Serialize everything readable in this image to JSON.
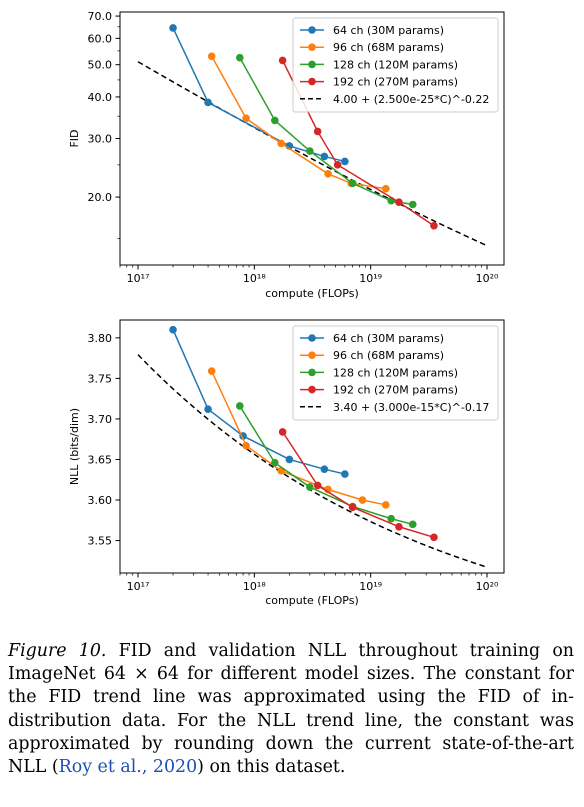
{
  "colors": {
    "s64": "#1f77b4",
    "s96": "#ff7f0e",
    "s128": "#2ca02c",
    "s192": "#d62728",
    "trend": "#000000"
  },
  "chart_data": [
    {
      "type": "line",
      "xlabel": "compute (FLOPs)",
      "ylabel": "FID",
      "xscale": "log",
      "yscale": "log",
      "xlim": [
        7e+16,
        1.4e+20
      ],
      "ylim": [
        12.5,
        72
      ],
      "xticks": [
        {
          "v": 1e+17,
          "label": "10¹⁷"
        },
        {
          "v": 1e+18,
          "label": "10¹⁸"
        },
        {
          "v": 1e+19,
          "label": "10¹⁹"
        },
        {
          "v": 1e+20,
          "label": "10²⁰"
        }
      ],
      "yticks": [
        {
          "v": 20,
          "label": "20.0"
        },
        {
          "v": 30,
          "label": "30.0"
        },
        {
          "v": 40,
          "label": "40.0"
        },
        {
          "v": 50,
          "label": "50.0"
        },
        {
          "v": 60,
          "label": "60.0"
        },
        {
          "v": 70,
          "label": "70.0"
        }
      ],
      "legend_position": "top-right",
      "series": [
        {
          "name": "64 ch (30M params)",
          "color": "#1f77b4",
          "points": [
            [
              2e+17,
              64.5
            ],
            [
              4e+17,
              38.5
            ],
            [
              2e+18,
              28.5
            ],
            [
              4e+18,
              26.5
            ],
            [
              6e+18,
              25.6
            ]
          ]
        },
        {
          "name": "96 ch (68M params)",
          "color": "#ff7f0e",
          "points": [
            [
              4.3e+17,
              53.0
            ],
            [
              8.5e+17,
              34.5
            ],
            [
              1.7e+18,
              29.0
            ],
            [
              4.3e+18,
              23.5
            ],
            [
              6.8e+18,
              22.0
            ],
            [
              1.35e+19,
              21.2
            ]
          ]
        },
        {
          "name": "128 ch (120M params)",
          "color": "#2ca02c",
          "points": [
            [
              7.5e+17,
              52.5
            ],
            [
              1.5e+18,
              34.0
            ],
            [
              3e+18,
              27.5
            ],
            [
              7e+18,
              22.0
            ],
            [
              1.5e+19,
              19.5
            ],
            [
              2.3e+19,
              19.0
            ]
          ]
        },
        {
          "name": "192 ch (270M params)",
          "color": "#d62728",
          "points": [
            [
              1.75e+18,
              51.5
            ],
            [
              3.5e+18,
              31.5
            ],
            [
              5.2e+18,
              25.0
            ],
            [
              1.75e+19,
              19.3
            ],
            [
              3.5e+19,
              16.4
            ]
          ]
        }
      ],
      "trend": {
        "name": "4.00 + (2.500e-25*C)^-0.22",
        "const": 4.0,
        "a": 2.5e-25,
        "b": -0.22,
        "xrange": [
          1e+17,
          1e+20
        ]
      }
    },
    {
      "type": "line",
      "xlabel": "compute (FLOPs)",
      "ylabel": "NLL (bits/dim)",
      "xscale": "log",
      "yscale": "linear",
      "xlim": [
        7e+16,
        1.4e+20
      ],
      "ylim": [
        3.51,
        3.822
      ],
      "xticks": [
        {
          "v": 1e+17,
          "label": "10¹⁷"
        },
        {
          "v": 1e+18,
          "label": "10¹⁸"
        },
        {
          "v": 1e+19,
          "label": "10¹⁹"
        },
        {
          "v": 1e+20,
          "label": "10²⁰"
        }
      ],
      "yticks": [
        {
          "v": 3.55,
          "label": "3.55"
        },
        {
          "v": 3.6,
          "label": "3.60"
        },
        {
          "v": 3.65,
          "label": "3.65"
        },
        {
          "v": 3.7,
          "label": "3.70"
        },
        {
          "v": 3.75,
          "label": "3.75"
        },
        {
          "v": 3.8,
          "label": "3.80"
        }
      ],
      "legend_position": "top-right",
      "series": [
        {
          "name": "64 ch (30M params)",
          "color": "#1f77b4",
          "points": [
            [
              2e+17,
              3.81
            ],
            [
              4e+17,
              3.712
            ],
            [
              8e+17,
              3.679
            ],
            [
              2e+18,
              3.65
            ],
            [
              4e+18,
              3.638
            ],
            [
              6e+18,
              3.632
            ]
          ]
        },
        {
          "name": "96 ch (68M params)",
          "color": "#ff7f0e",
          "points": [
            [
              4.3e+17,
              3.759
            ],
            [
              8.5e+17,
              3.667
            ],
            [
              1.7e+18,
              3.636
            ],
            [
              4.3e+18,
              3.613
            ],
            [
              8.5e+18,
              3.6
            ],
            [
              1.35e+19,
              3.594
            ]
          ]
        },
        {
          "name": "128 ch (120M params)",
          "color": "#2ca02c",
          "points": [
            [
              7.5e+17,
              3.716
            ],
            [
              1.5e+18,
              3.646
            ],
            [
              3e+18,
              3.616
            ],
            [
              7e+18,
              3.592
            ],
            [
              1.5e+19,
              3.577
            ],
            [
              2.3e+19,
              3.57
            ]
          ]
        },
        {
          "name": "192 ch (270M params)",
          "color": "#d62728",
          "points": [
            [
              1.75e+18,
              3.684
            ],
            [
              3.5e+18,
              3.618
            ],
            [
              7e+18,
              3.591
            ],
            [
              1.75e+19,
              3.567
            ],
            [
              3.5e+19,
              3.554
            ]
          ]
        }
      ],
      "trend": {
        "name": "3.40 + (3.000e-15*C)^-0.17",
        "const": 3.4,
        "a": 3e-15,
        "b": -0.17,
        "xrange": [
          1e+17,
          1e+20
        ]
      }
    }
  ],
  "caption": {
    "label": "Figure 10.",
    "text_before_math": " FID and validation NLL throughout training on ImageNet ",
    "math": "64 × 64",
    "text_after_math": " for different model sizes. The constant for the FID trend line was approximated using the FID of in-distribution data. For the NLL trend line, the constant was approximated by rounding down the current state-of-the-art NLL (",
    "citation": "Roy et al., 2020",
    "text_end": ") on this dataset."
  }
}
